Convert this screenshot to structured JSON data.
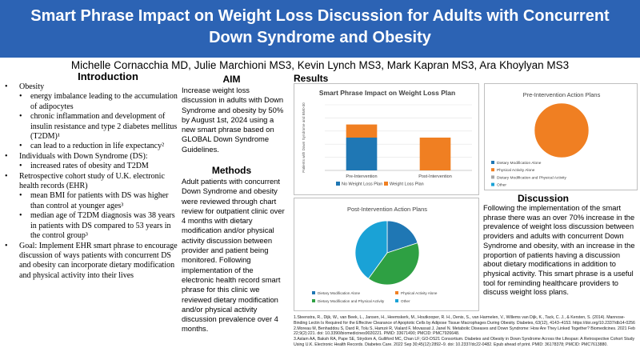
{
  "title": {
    "line1": "Smart Phrase Impact on Weight Loss Discussion for Adults with Concurrent",
    "line2": "Down Syndrome and Obesity"
  },
  "authors": "Michelle Cornacchia MD, Julie Marchioni MS3, Kevin Lynch MS3, Mark Kapran MS3, Ara Khoylyan MS3",
  "introduction": {
    "heading": "Introduction",
    "items": [
      {
        "level": 1,
        "text": "Obesity"
      },
      {
        "level": 2,
        "text": "energy imbalance leading to the accumulation of adipocytes"
      },
      {
        "level": 2,
        "text": "chronic inflammation and development of insulin resistance and type 2 diabetes mellitus (T2DM)¹"
      },
      {
        "level": 2,
        "text": "can lead to a reduction in life expectancy²"
      },
      {
        "level": 1,
        "text": "Individuals with Down Syndrome (DS):"
      },
      {
        "level": 2,
        "text": " increased rates of obesity and T2DM"
      },
      {
        "level": 1,
        "text": "Retrospective cohort study of U.K. electronic health records (EHR)"
      },
      {
        "level": 2,
        "text": "mean BMI for patients with DS was higher than control at younger ages³"
      },
      {
        "level": 2,
        "text": "median age of T2DM diagnosis was 38 years in patients with DS compared to 53 years in the control group³"
      },
      {
        "level": 1,
        "text": "Goal: Implement EHR smart phrase to encourage discussion of  ways patients with concurrent DS and obesity can incorporate dietary modification and physical activity into their lives"
      }
    ]
  },
  "aim": {
    "heading": "AIM",
    "text": "Increase weight loss discussion in adults with Down Syndrome and obesity by 50% by August 1st, 2024 using a new smart phrase based on GLOBAL Down Syndrome Guidelines."
  },
  "methods": {
    "heading": "Methods",
    "text": "Adult patients with concurrent Down Syndrome and obesity were reviewed through chart review for outpatient clinic over 4 months with dietary modification and/or physical activity discussion between provider and patient being monitored. Following implementation of the electronic health record smart phrase for this clinic we reviewed dietary modification and/or physical activity discussion prevalence over 4 months."
  },
  "results": {
    "heading": "Results"
  },
  "discussion": {
    "heading": "Discussion",
    "text": "Following the implementation of the smart phrase there was an over 70% increase in the prevalence of weight loss discussion between providers and adults with concurrent Down Syndrome and obesity, with an increase in the proportion of patients having a discussion about dietary modifications in addition to physical activity. This smart phrase is a useful tool for reminding healthcare providers to discuss weight loss plans."
  },
  "references": [
    "1.Steenstra, R., Dijk, W., van Beek, L., Jansen, H., Heemskerk, M., Houtkooper, R. H., Denis, S., van Harmelen, V., Willems van Dijk, K., Tack, C. J., & Kersten, S. (2014). Mannose-Binding Lectin Is Required for the Effective Clearance of Apoptotic Cells by Adipose Tissue Macrophages During Obesity. Diabetes, 63(12), 4143–4153. https://doi.org/10.2337/db14-0256",
    "2.Moreau M, Benhaddou S, Dard R, Tolu S, Hamzé R, Vialard F, Movassat J, Janel N. Metabolic Diseases and Down Syndrome: How Are They Linked Together? Biomedicines. 2021 Feb 22;9(2):221. doi: 10.3390/biomedicines9020221. PMID: 33671490; PMCID: PMC7926648.",
    "3.Aslam AA, Baksh RA, Pape SE, Strydom A, Gulliford MC, Chan LF; GO-DS21 Consortium. Diabetes and Obesity in Down Syndrome Across the Lifespan: A Retrospective Cohort Study Using U.K. Electronic Health Records. Diabetes Care. 2022 Sep 30;45(12):2892–9. doi: 10.2337/dc22-0482. Epub ahead of print. PMID: 36178378; PMCID: PMC7613880."
  ],
  "colors": {
    "banner": "#2c63b4",
    "blue": "#1f77b4",
    "orange": "#f07f22",
    "green": "#2ea043",
    "gray": "#a5a5a5",
    "teal": "#1aa2d6"
  },
  "chart_data": [
    {
      "type": "bar",
      "title": "Smart Phrase Impact on Weight Loss Plan",
      "ylabel": "Patients with Down Syndrome and BMI>30",
      "xlabel": "",
      "categories": [
        "Pre-Intervention",
        "Post-Intervention"
      ],
      "stacked": true,
      "ylim": [
        0,
        10
      ],
      "grid": true,
      "legend": "bottom",
      "series": [
        {
          "name": "No Weight Loss Plan",
          "values": [
            5,
            0
          ],
          "color": "#1f77b4"
        },
        {
          "name": "Weight Loss Plan",
          "values": [
            2,
            5
          ],
          "color": "#f07f22"
        }
      ]
    },
    {
      "type": "pie",
      "title": "Pre-Intervention Action Plans",
      "legend": "left",
      "categories": [
        "Dietary Modification Alone",
        "Physical Activity Alone",
        "Dietary Modification and Physical Activity",
        "Other"
      ],
      "values": [
        0,
        100,
        0,
        0
      ],
      "colors": [
        "#1f77b4",
        "#f07f22",
        "#a5a5a5",
        "#1aa2d6"
      ]
    },
    {
      "type": "pie",
      "title": "Post-Intervention Action Plans",
      "legend": "bottom",
      "categories": [
        "Dietary Modification Alone",
        "Physical Activity Alone",
        "Dietary Modification and Physical Activity",
        "Other"
      ],
      "values": [
        20,
        0,
        40,
        40
      ],
      "colors": [
        "#1f77b4",
        "#f07f22",
        "#2ea043",
        "#1aa2d6"
      ]
    }
  ]
}
